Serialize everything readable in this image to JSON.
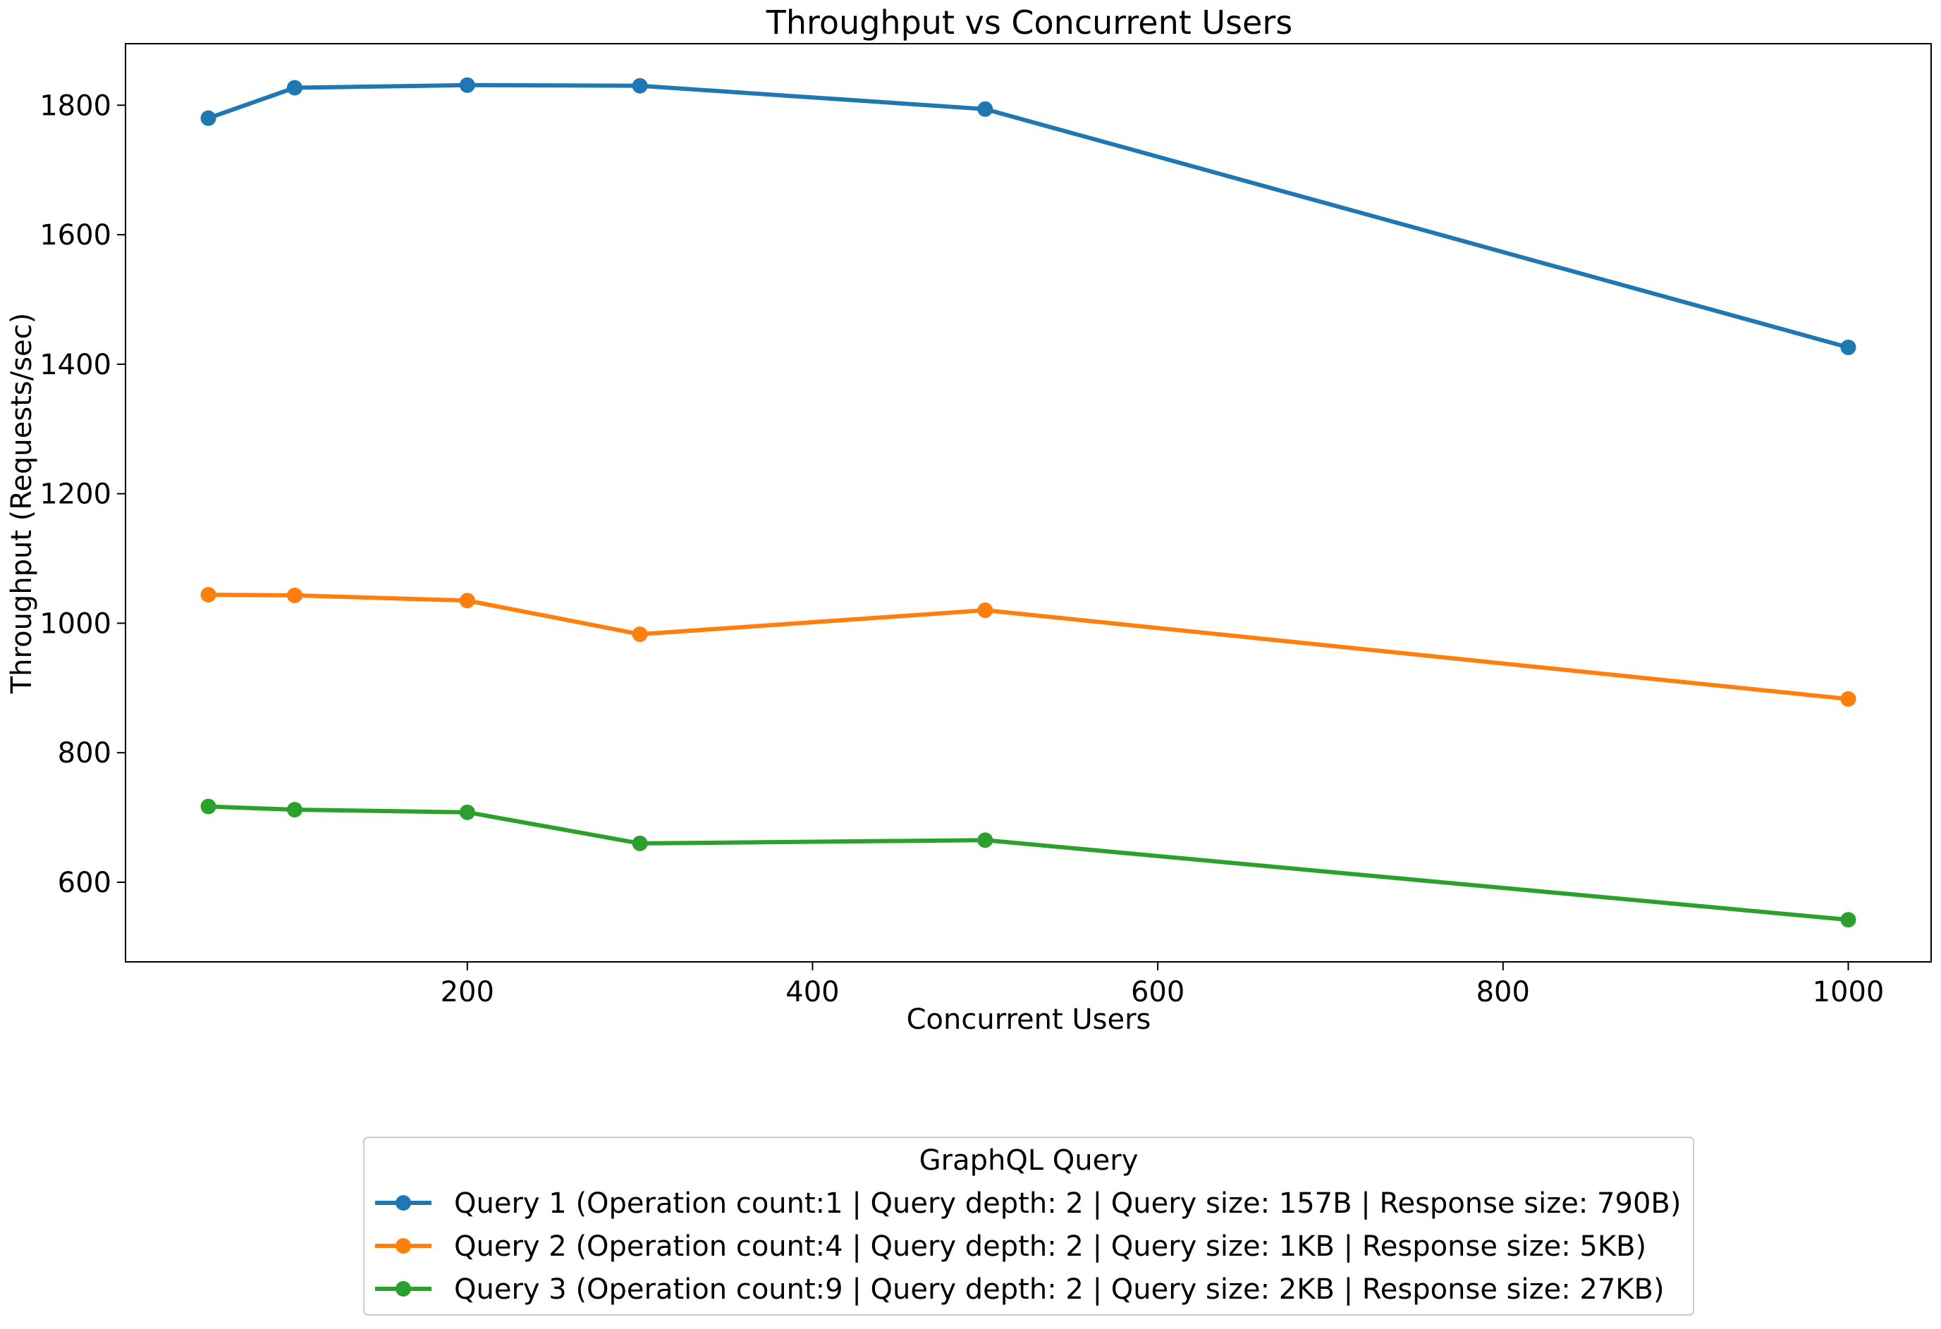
{
  "chart_data": {
    "type": "line",
    "title": "Throughput vs Concurrent Users",
    "xlabel": "Concurrent Users",
    "ylabel": "Throughput (Requests/sec)",
    "x": [
      50,
      100,
      200,
      300,
      500,
      1000
    ],
    "xlim": [
      2,
      1048
    ],
    "ylim": [
      477,
      1895
    ],
    "xticks": [
      200,
      400,
      600,
      800,
      1000
    ],
    "yticks": [
      600,
      800,
      1000,
      1200,
      1400,
      1600,
      1800
    ],
    "grid": false,
    "legend": {
      "title": "GraphQL Query",
      "placement": "below plot, centered"
    },
    "series": [
      {
        "name": "Query 1 (Operation count:1 | Query depth: 2 | Query size: 157B | Response size: 790B)",
        "color": "#1f77b4",
        "values": [
          1780,
          1827,
          1831,
          1830,
          1794,
          1426
        ]
      },
      {
        "name": "Query 2 (Operation count:4 | Query depth: 2 | Query size: 1KB | Response size: 5KB)",
        "color": "#ff7f0e",
        "values": [
          1044,
          1043,
          1035,
          983,
          1020,
          883
        ]
      },
      {
        "name": "Query 3 (Operation count:9 | Query depth: 2 | Query size: 2KB | Response size: 27KB)",
        "color": "#2ca02c",
        "values": [
          717,
          712,
          708,
          660,
          665,
          542
        ]
      }
    ]
  }
}
